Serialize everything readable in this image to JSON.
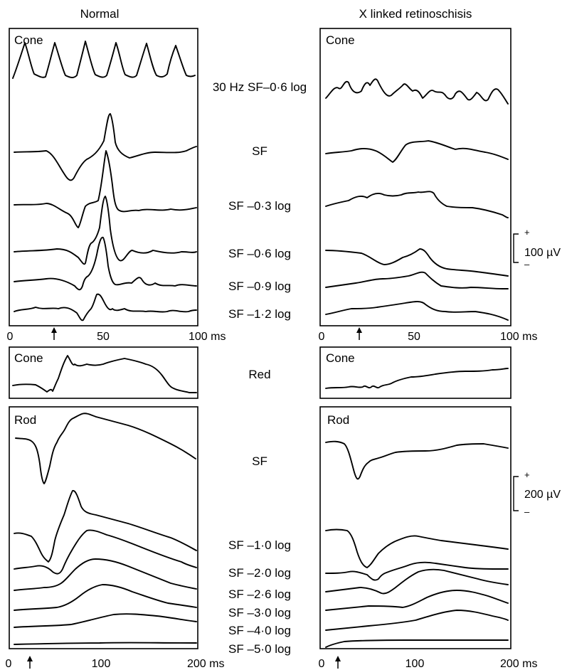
{
  "columns": {
    "normal": "Normal",
    "xlrs": "X linked retinoschisis"
  },
  "panels": {
    "cone_top_normal": "Cone",
    "cone_top_xlrs": "Cone",
    "cone_red_normal": "Cone",
    "cone_red_xlrs": "Cone",
    "rod_normal": "Rod",
    "rod_xlrs": "Rod"
  },
  "cone_conditions": [
    "30 Hz SF–0·6 log",
    "SF",
    "SF –0·3 log",
    "SF –0·6 log",
    "SF –0·9 log",
    "SF –1·2 log"
  ],
  "red_condition": "Red",
  "rod_conditions": [
    "SF",
    "SF –1·0 log",
    "SF –2·0 log",
    "SF –2·6 log",
    "SF –3·0 log",
    "SF –4·0 log",
    "SF –5·0 log"
  ],
  "axes": {
    "cone": {
      "ticks": [
        "0",
        "50",
        "100 ms"
      ],
      "range_ms": [
        0,
        100
      ]
    },
    "rod": {
      "ticks": [
        "0",
        "100",
        "200 ms"
      ],
      "range_ms": [
        0,
        200
      ]
    }
  },
  "scale_bars": {
    "cone": {
      "plus": "+",
      "minus": "–",
      "label": "100 µV"
    },
    "rod": {
      "plus": "+",
      "minus": "–",
      "label": "200 µV"
    }
  },
  "icons": {
    "stimulus_marker": "arrow-up-icon"
  }
}
